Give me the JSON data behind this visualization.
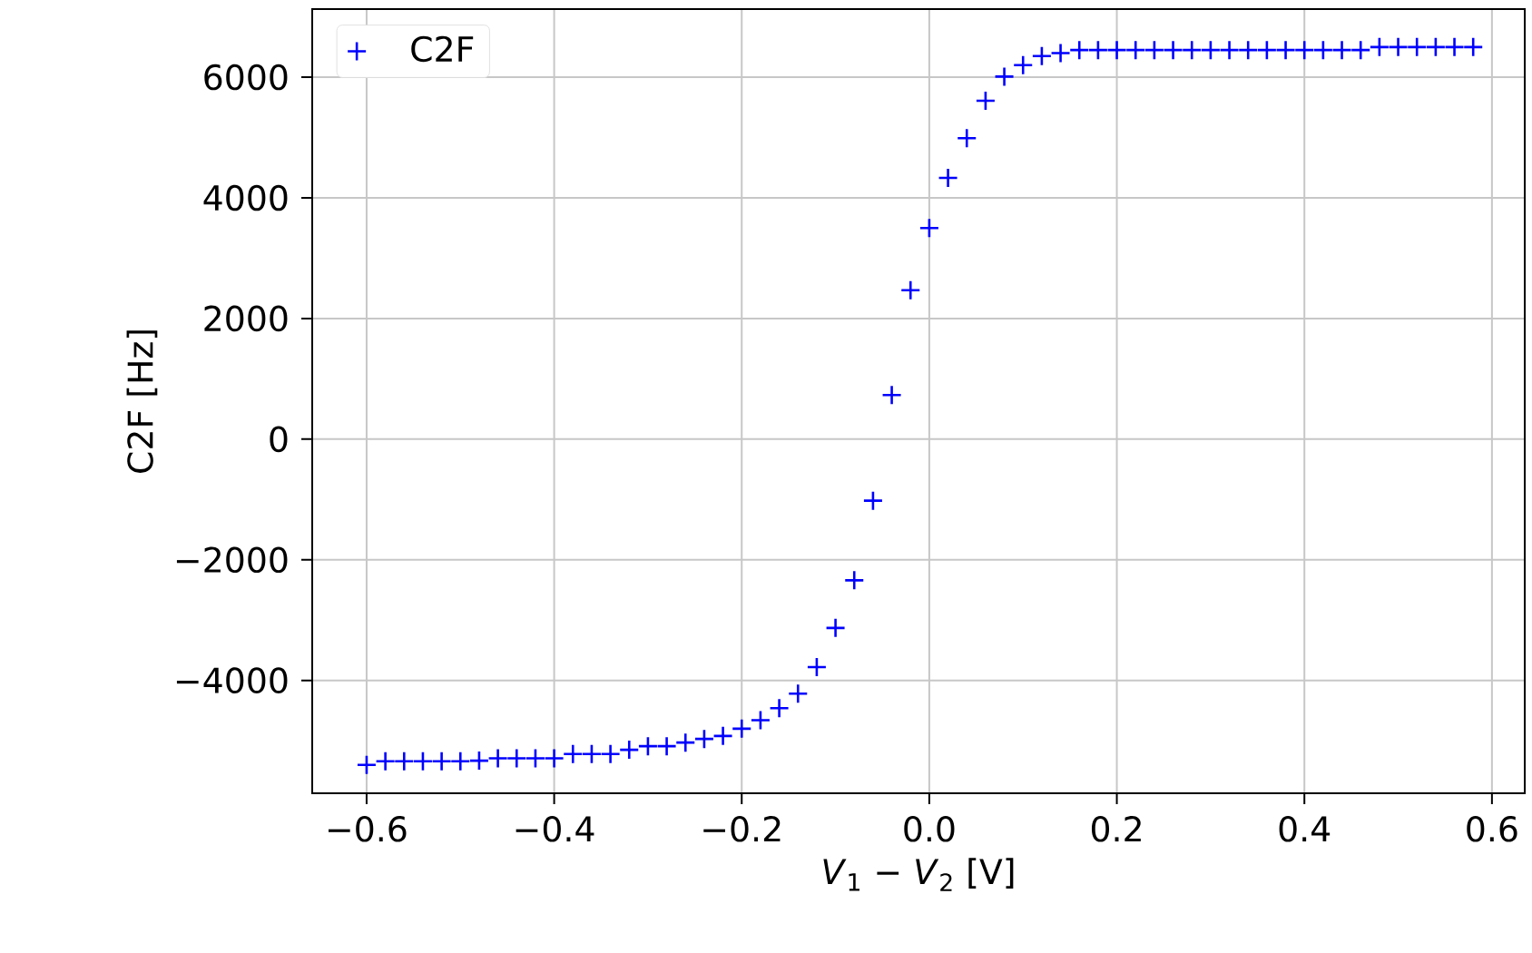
{
  "chart_data": {
    "type": "scatter",
    "xlabel": "*V*$_{1}$ − *V*$_{2}$ [V]",
    "ylabel": "C2F [Hz]",
    "x": [
      -0.6,
      -0.58,
      -0.56,
      -0.54,
      -0.52,
      -0.5,
      -0.48,
      -0.46,
      -0.44,
      -0.42,
      -0.4,
      -0.38,
      -0.36,
      -0.34,
      -0.32,
      -0.3,
      -0.28,
      -0.26,
      -0.24,
      -0.22,
      -0.2,
      -0.18,
      -0.16,
      -0.14,
      -0.12,
      -0.1,
      -0.08,
      -0.06,
      -0.04,
      -0.02,
      0.0,
      0.02,
      0.04,
      0.06,
      0.08,
      0.1,
      0.12,
      0.14,
      0.16,
      0.18,
      0.2,
      0.22,
      0.24,
      0.26,
      0.28,
      0.3,
      0.32,
      0.34,
      0.36,
      0.38,
      0.4,
      0.42,
      0.44,
      0.46,
      0.48,
      0.5,
      0.52,
      0.54,
      0.56,
      0.58
    ],
    "series": [
      {
        "name": "C2F",
        "color": "#0000ff",
        "values": [
          -5400,
          -5340,
          -5340,
          -5340,
          -5340,
          -5340,
          -5330,
          -5290,
          -5290,
          -5290,
          -5290,
          -5220,
          -5220,
          -5220,
          -5150,
          -5090,
          -5090,
          -5030,
          -4970,
          -4920,
          -4800,
          -4660,
          -4460,
          -4220,
          -3780,
          -3130,
          -2340,
          -1020,
          730,
          2470,
          3500,
          4330,
          4990,
          5610,
          6010,
          6200,
          6350,
          6400,
          6450,
          6450,
          6450,
          6450,
          6450,
          6450,
          6450,
          6450,
          6450,
          6450,
          6450,
          6450,
          6450,
          6450,
          6450,
          6450,
          6500,
          6500,
          6500,
          6500,
          6500,
          6500
        ]
      }
    ],
    "xlim": [
      -0.658,
      0.635
    ],
    "ylim": [
      -5870,
      7130
    ],
    "xticks": [
      {
        "value": -0.6,
        "label": "−0.6"
      },
      {
        "value": -0.4,
        "label": "−0.4"
      },
      {
        "value": -0.2,
        "label": "−0.2"
      },
      {
        "value": 0.0,
        "label": "0.0"
      },
      {
        "value": 0.2,
        "label": "0.2"
      },
      {
        "value": 0.4,
        "label": "0.4"
      },
      {
        "value": 0.6,
        "label": "0.6"
      }
    ],
    "yticks": [
      {
        "value": -4000,
        "label": "−4000"
      },
      {
        "value": -2000,
        "label": "−2000"
      },
      0,
      2000,
      4000,
      6000
    ],
    "grid": true,
    "legend": "top left",
    "marker": "cross"
  }
}
